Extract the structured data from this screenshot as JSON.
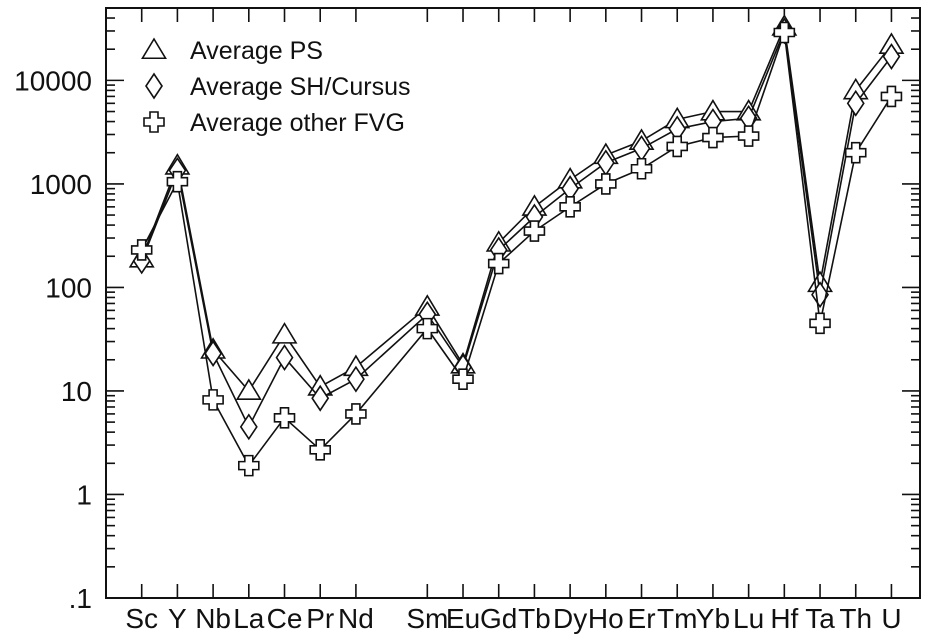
{
  "chart_data": {
    "type": "line",
    "y_scale": "log",
    "ylim": [
      0.1,
      50000
    ],
    "yticks": [
      0.1,
      1,
      10,
      100,
      1000,
      10000
    ],
    "ytick_labels": [
      ".1",
      "1",
      "10",
      "100",
      "1000",
      "10000"
    ],
    "categories": [
      "Sc",
      "Y",
      "Nb",
      "La",
      "Ce",
      "Pr",
      "Nd",
      "Sm",
      "Eu",
      "Gd",
      "Tb",
      "Dy",
      "Ho",
      "Er",
      "Tm",
      "Yb",
      "Lu",
      "Hf",
      "Ta",
      "Th",
      "U"
    ],
    "category_positions": [
      1,
      2,
      3,
      4,
      5,
      6,
      7,
      9,
      10,
      11,
      12,
      13,
      14,
      15,
      16,
      17,
      18,
      19,
      20,
      21,
      22
    ],
    "xlim": [
      0,
      22.8
    ],
    "legend_position": "top-left",
    "grid": false,
    "series": [
      {
        "name": "Average PS",
        "marker": "triangle",
        "values": [
          190,
          1500,
          25,
          10,
          35,
          11,
          17,
          65,
          18,
          270,
          600,
          1100,
          1900,
          2600,
          4200,
          5000,
          5000,
          33000,
          110,
          8000,
          22000
        ]
      },
      {
        "name": "Average SH/Cursus",
        "marker": "diamond",
        "values": [
          180,
          1350,
          23,
          4.5,
          21,
          8.5,
          13,
          55,
          17,
          230,
          480,
          900,
          1600,
          2200,
          3400,
          4000,
          4300,
          30000,
          85,
          6000,
          17000
        ]
      },
      {
        "name": "Average other FVG",
        "marker": "cross",
        "values": [
          230,
          1050,
          8.2,
          1.9,
          5.5,
          2.7,
          6,
          40,
          13,
          170,
          350,
          600,
          1000,
          1400,
          2300,
          2800,
          2900,
          29000,
          45,
          2000,
          7000
        ]
      }
    ]
  }
}
